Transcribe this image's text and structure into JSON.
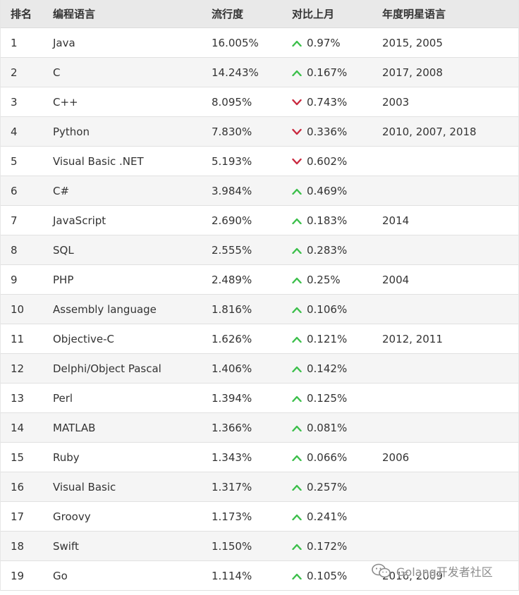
{
  "headers": {
    "rank": "排名",
    "language": "编程语言",
    "popularity": "流行度",
    "change": "对比上月",
    "star": "年度明星语言"
  },
  "colors": {
    "up": "#3bbf4a",
    "down": "#c9283e"
  },
  "rows": [
    {
      "rank": "1",
      "language": "Java",
      "popularity": "16.005%",
      "trend": "up",
      "change": "0.97%",
      "star": "2015, 2005"
    },
    {
      "rank": "2",
      "language": "C",
      "popularity": "14.243%",
      "trend": "up",
      "change": "0.167%",
      "star": "2017, 2008"
    },
    {
      "rank": "3",
      "language": "C++",
      "popularity": "8.095%",
      "trend": "down",
      "change": "0.743%",
      "star": "2003"
    },
    {
      "rank": "4",
      "language": "Python",
      "popularity": "7.830%",
      "trend": "down",
      "change": "0.336%",
      "star": "2010, 2007, 2018"
    },
    {
      "rank": "5",
      "language": "Visual Basic .NET",
      "popularity": "5.193%",
      "trend": "down",
      "change": "0.602%",
      "star": ""
    },
    {
      "rank": "6",
      "language": "C#",
      "popularity": "3.984%",
      "trend": "up",
      "change": "0.469%",
      "star": ""
    },
    {
      "rank": "7",
      "language": "JavaScript",
      "popularity": "2.690%",
      "trend": "up",
      "change": "0.183%",
      "star": "2014"
    },
    {
      "rank": "8",
      "language": "SQL",
      "popularity": "2.555%",
      "trend": "up",
      "change": "0.283%",
      "star": ""
    },
    {
      "rank": "9",
      "language": "PHP",
      "popularity": "2.489%",
      "trend": "up",
      "change": "0.25%",
      "star": "2004"
    },
    {
      "rank": "10",
      "language": "Assembly language",
      "popularity": "1.816%",
      "trend": "up",
      "change": "0.106%",
      "star": ""
    },
    {
      "rank": "11",
      "language": "Objective-C",
      "popularity": "1.626%",
      "trend": "up",
      "change": "0.121%",
      "star": "2012, 2011"
    },
    {
      "rank": "12",
      "language": "Delphi/Object Pascal",
      "popularity": "1.406%",
      "trend": "up",
      "change": "0.142%",
      "star": ""
    },
    {
      "rank": "13",
      "language": "Perl",
      "popularity": "1.394%",
      "trend": "up",
      "change": "0.125%",
      "star": ""
    },
    {
      "rank": "14",
      "language": "MATLAB",
      "popularity": "1.366%",
      "trend": "up",
      "change": "0.081%",
      "star": ""
    },
    {
      "rank": "15",
      "language": "Ruby",
      "popularity": "1.343%",
      "trend": "up",
      "change": "0.066%",
      "star": "2006"
    },
    {
      "rank": "16",
      "language": "Visual Basic",
      "popularity": "1.317%",
      "trend": "up",
      "change": "0.257%",
      "star": ""
    },
    {
      "rank": "17",
      "language": "Groovy",
      "popularity": "1.173%",
      "trend": "up",
      "change": "0.241%",
      "star": ""
    },
    {
      "rank": "18",
      "language": "Swift",
      "popularity": "1.150%",
      "trend": "up",
      "change": "0.172%",
      "star": ""
    },
    {
      "rank": "19",
      "language": "Go",
      "popularity": "1.114%",
      "trend": "up",
      "change": "0.105%",
      "star": "2016, 2009"
    }
  ],
  "watermark": {
    "text": "Golang开发者社区",
    "icon": "wechat-logo-icon"
  }
}
